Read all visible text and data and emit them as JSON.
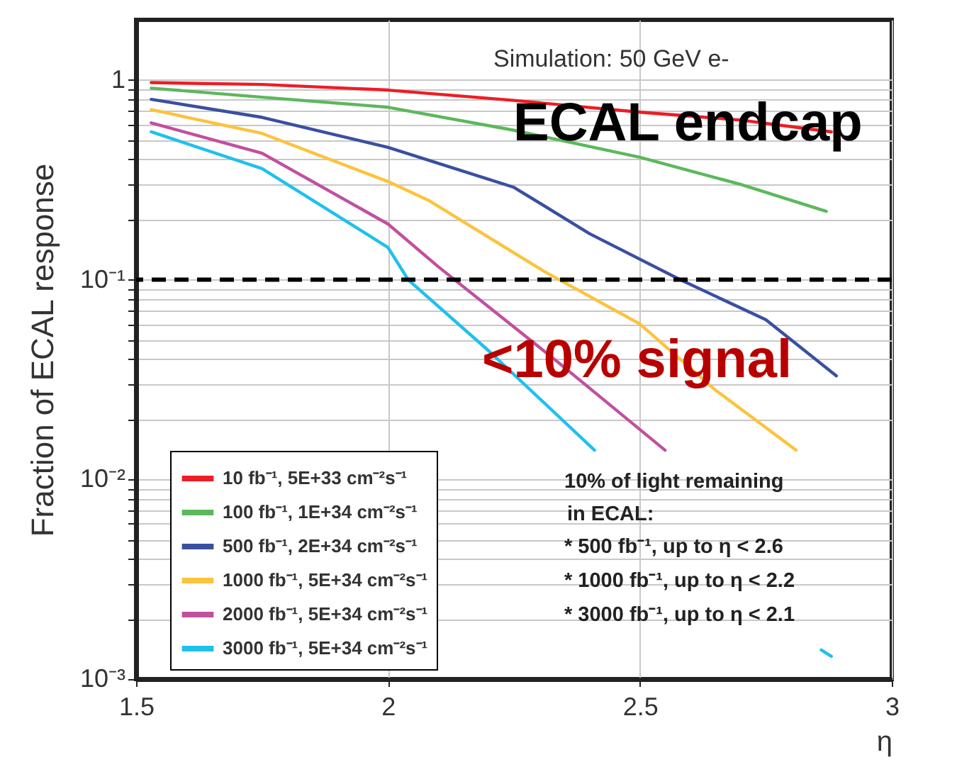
{
  "chart_data": {
    "type": "line",
    "xlabel": "η",
    "ylabel": "Fraction of ECAL response",
    "xlim": [
      1.5,
      3
    ],
    "xticks": [
      1.5,
      2,
      2.5,
      3
    ],
    "ylim": [
      0.001,
      2
    ],
    "yticks": [
      {
        "value": 0.001,
        "label": "10⁻³"
      },
      {
        "value": 0.002,
        "label": null
      },
      {
        "value": 0.003,
        "label": null
      },
      {
        "value": 0.004,
        "label": null
      },
      {
        "value": 0.005,
        "label": null
      },
      {
        "value": 0.006,
        "label": null
      },
      {
        "value": 0.007,
        "label": null
      },
      {
        "value": 0.008,
        "label": null
      },
      {
        "value": 0.009,
        "label": null
      },
      {
        "value": 0.01,
        "label": "10⁻²"
      },
      {
        "value": 0.02,
        "label": null
      },
      {
        "value": 0.03,
        "label": null
      },
      {
        "value": 0.04,
        "label": null
      },
      {
        "value": 0.05,
        "label": null
      },
      {
        "value": 0.06,
        "label": null
      },
      {
        "value": 0.07,
        "label": null
      },
      {
        "value": 0.08,
        "label": null
      },
      {
        "value": 0.09,
        "label": null
      },
      {
        "value": 0.1,
        "label": "10⁻¹"
      },
      {
        "value": 0.2,
        "label": null
      },
      {
        "value": 0.3,
        "label": null
      },
      {
        "value": 0.4,
        "label": null
      },
      {
        "value": 0.5,
        "label": null
      },
      {
        "value": 0.6,
        "label": null
      },
      {
        "value": 0.7,
        "label": null
      },
      {
        "value": 0.8,
        "label": null
      },
      {
        "value": 0.9,
        "label": null
      },
      1
    ],
    "log": "y",
    "grid": true,
    "legend": "bottom left",
    "line_style": "solid",
    "series": [
      {
        "name": "10 fb⁻¹, 5E+33 cm⁻²s⁻¹",
        "color": "#ee1c25",
        "x": [
          1.53,
          1.75,
          2.0,
          2.25,
          2.5,
          2.7,
          2.88
        ],
        "values": [
          0.97,
          0.95,
          0.89,
          0.79,
          0.69,
          0.63,
          0.55
        ]
      },
      {
        "name": "100 fb⁻¹, 1E+34 cm⁻²s⁻¹",
        "color": "#5cb85c",
        "x": [
          1.53,
          1.75,
          2.0,
          2.25,
          2.5,
          2.7,
          2.87
        ],
        "values": [
          0.91,
          0.82,
          0.73,
          0.56,
          0.41,
          0.3,
          0.22
        ]
      },
      {
        "name": "500 fb⁻¹, 2E+34 cm⁻²s⁻¹",
        "color": "#3a4fa0",
        "x": [
          1.53,
          1.75,
          2.0,
          2.25,
          2.4,
          2.58,
          2.75,
          2.89
        ],
        "values": [
          0.8,
          0.65,
          0.46,
          0.29,
          0.17,
          0.1,
          0.063,
          0.033
        ]
      },
      {
        "name": "1000 fb⁻¹, 5E+34 cm⁻²s⁻¹",
        "color": "#fcc33c",
        "x": [
          1.53,
          1.75,
          2.0,
          2.08,
          2.31,
          2.5,
          2.65,
          2.81
        ],
        "values": [
          0.71,
          0.54,
          0.31,
          0.25,
          0.11,
          0.06,
          0.028,
          0.014
        ]
      },
      {
        "name": "2000 fb⁻¹, 5E+34 cm⁻²s⁻¹",
        "color": "#c050a0",
        "x": [
          1.53,
          1.75,
          2.0,
          2.1,
          2.33,
          2.55
        ],
        "values": [
          0.61,
          0.43,
          0.19,
          0.116,
          0.04,
          0.014
        ]
      },
      {
        "name": "3000 fb⁻¹, 5E+34 cm⁻²s⁻¹",
        "color": "#20c0ee",
        "x": [
          1.53,
          1.75,
          2.0,
          2.04,
          2.2,
          2.41,
          2.6,
          2.86,
          2.88
        ],
        "values": [
          0.55,
          0.36,
          0.145,
          0.1,
          0.044,
          0.014,
          null,
          0.0014,
          0.0013
        ]
      }
    ],
    "ref_lines": [
      {
        "axis": "y",
        "value": 0.1,
        "color": "#000000",
        "line_style": "dashed"
      }
    ],
    "annotations": [
      "Simulation: 50 GeV e-",
      "ECAL endcap",
      "<10% signal",
      "10% of light remaining",
      "in ECAL:",
      "* 500 fb⁻¹, up to η < 2.6",
      "* 1000 fb⁻¹, up to η < 2.2",
      "* 3000 fb⁻¹, up to η < 2.1"
    ]
  }
}
